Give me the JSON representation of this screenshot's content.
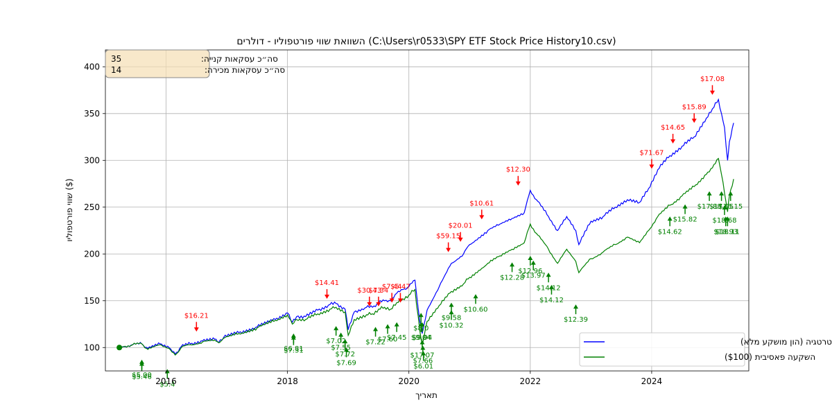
{
  "chart_data": {
    "type": "line",
    "title": "השוואת שווי פורטפוליו - דולרים (C:\\Users\\r0533\\SPY ETF Stock Price History10.csv)",
    "xlabel": "תאריך",
    "ylabel": "שווי פורטפוליו ($)",
    "xlim": [
      2015.0,
      2025.6
    ],
    "ylim": [
      75,
      418
    ],
    "x_ticks": [
      2016,
      2018,
      2020,
      2022,
      2024
    ],
    "y_ticks": [
      100,
      150,
      200,
      250,
      300,
      350,
      400
    ],
    "grid": true,
    "legend_position": "bottom-right",
    "colors": {
      "strategy": "#0000ff",
      "passive": "#008000",
      "sell": "#ff0000",
      "buy": "#008000"
    },
    "series": [
      {
        "name": "ביצועי אסטרטגיה (הון מושקע מלא)",
        "color": "#0000ff",
        "x": [
          2015.23,
          2015.3,
          2015.45,
          2015.6,
          2015.7,
          2015.9,
          2016.05,
          2016.1,
          2016.15,
          2016.25,
          2016.4,
          2016.6,
          2016.8,
          2016.87,
          2016.95,
          2017.2,
          2017.5,
          2017.8,
          2018.0,
          2018.08,
          2018.15,
          2018.3,
          2018.5,
          2018.7,
          2018.8,
          2018.95,
          2019.0,
          2019.1,
          2019.3,
          2019.4,
          2019.5,
          2019.6,
          2019.7,
          2019.8,
          2019.9,
          2020.0,
          2020.1,
          2020.18,
          2020.22,
          2020.3,
          2020.5,
          2020.7,
          2020.9,
          2021.0,
          2021.3,
          2021.5,
          2021.7,
          2021.9,
          2022.0,
          2022.1,
          2022.3,
          2022.45,
          2022.6,
          2022.75,
          2022.8,
          2023.0,
          2023.2,
          2023.4,
          2023.6,
          2023.8,
          2023.95,
          2024.1,
          2024.3,
          2024.5,
          2024.7,
          2024.9,
          2025.0,
          2025.1,
          2025.15,
          2025.2,
          2025.25,
          2025.28,
          2025.35
        ],
        "values": [
          100,
          101,
          103,
          104,
          99,
          104,
          100,
          96,
          93,
          101,
          104,
          107,
          109,
          106,
          111,
          116,
          122,
          130,
          137,
          127,
          133,
          133,
          140,
          146,
          147,
          141,
          119,
          138,
          143,
          143,
          148,
          150,
          150,
          158,
          162,
          165,
          172,
          128,
          115,
          140,
          165,
          190,
          200,
          210,
          225,
          232,
          238,
          244,
          268,
          258,
          240,
          225,
          240,
          225,
          210,
          235,
          240,
          250,
          258,
          255,
          270,
          290,
          305,
          315,
          325,
          345,
          355,
          365,
          350,
          335,
          300,
          320,
          340
        ]
      },
      {
        "name": "השקעה פאסיבית ($100)",
        "color": "#008000",
        "x": [
          2015.23,
          2015.3,
          2015.45,
          2015.6,
          2015.7,
          2015.9,
          2016.05,
          2016.1,
          2016.15,
          2016.25,
          2016.4,
          2016.6,
          2016.8,
          2016.87,
          2016.95,
          2017.2,
          2017.5,
          2017.8,
          2018.0,
          2018.08,
          2018.15,
          2018.3,
          2018.5,
          2018.7,
          2018.8,
          2018.95,
          2019.0,
          2019.1,
          2019.3,
          2019.4,
          2019.5,
          2019.6,
          2019.7,
          2019.8,
          2019.9,
          2020.0,
          2020.1,
          2020.18,
          2020.22,
          2020.3,
          2020.5,
          2020.7,
          2020.9,
          2021.0,
          2021.3,
          2021.5,
          2021.7,
          2021.9,
          2022.0,
          2022.1,
          2022.3,
          2022.45,
          2022.6,
          2022.75,
          2022.8,
          2023.0,
          2023.2,
          2023.4,
          2023.6,
          2023.8,
          2023.95,
          2024.1,
          2024.3,
          2024.5,
          2024.7,
          2024.9,
          2025.0,
          2025.1,
          2025.15,
          2025.2,
          2025.25,
          2025.28,
          2025.35
        ],
        "values": [
          100,
          101,
          103,
          104,
          98,
          103,
          99,
          95,
          92,
          100,
          103,
          106,
          108,
          105,
          110,
          115,
          121,
          129,
          135,
          125,
          130,
          130,
          136,
          141,
          143,
          138,
          113,
          130,
          135,
          136,
          141,
          143,
          141,
          148,
          152,
          156,
          162,
          118,
          103,
          128,
          145,
          160,
          168,
          175,
          190,
          198,
          205,
          212,
          232,
          222,
          205,
          190,
          205,
          192,
          180,
          195,
          202,
          210,
          218,
          212,
          225,
          240,
          252,
          262,
          272,
          285,
          292,
          302,
          285,
          265,
          245,
          262,
          280
        ]
      }
    ],
    "sell_annotations": [
      {
        "x": 2016.5,
        "y": 117,
        "label": "$16.21"
      },
      {
        "x": 2018.65,
        "y": 152,
        "label": "$14.41"
      },
      {
        "x": 2019.35,
        "y": 144,
        "label": "$30.43"
      },
      {
        "x": 2019.5,
        "y": 144,
        "label": "$7.34"
      },
      {
        "x": 2019.72,
        "y": 148,
        "label": "$7.44"
      },
      {
        "x": 2019.86,
        "y": 148,
        "label": "$5.47"
      },
      {
        "x": 2020.65,
        "y": 202,
        "label": "$59.15"
      },
      {
        "x": 2020.85,
        "y": 213,
        "label": "$20.01"
      },
      {
        "x": 2021.2,
        "y": 237,
        "label": "$10.61"
      },
      {
        "x": 2021.8,
        "y": 273,
        "label": "$12.30"
      },
      {
        "x": 2024.0,
        "y": 291,
        "label": "$71.67"
      },
      {
        "x": 2024.35,
        "y": 318,
        "label": "$14.65"
      },
      {
        "x": 2024.7,
        "y": 340,
        "label": "$15.89"
      },
      {
        "x": 2025.0,
        "y": 370,
        "label": "$17.08"
      }
    ],
    "buy_annotations": [
      {
        "x": 2015.6,
        "y": 87,
        "label": "$5.00"
      },
      {
        "x": 2015.6,
        "y": 85,
        "label": "$5.46"
      },
      {
        "x": 2016.02,
        "y": 77,
        "label": "$5.4"
      },
      {
        "x": 2018.1,
        "y": 115,
        "label": "$6.81"
      },
      {
        "x": 2018.1,
        "y": 113,
        "label": "$7.31"
      },
      {
        "x": 2018.8,
        "y": 123,
        "label": "$7.02"
      },
      {
        "x": 2018.88,
        "y": 116,
        "label": "$7.55"
      },
      {
        "x": 2018.95,
        "y": 109,
        "label": "$7.72"
      },
      {
        "x": 2018.97,
        "y": 100,
        "label": "$7.69"
      },
      {
        "x": 2019.45,
        "y": 122,
        "label": "$7.22"
      },
      {
        "x": 2019.65,
        "y": 125,
        "label": "$7.60"
      },
      {
        "x": 2019.8,
        "y": 127,
        "label": "$7.45"
      },
      {
        "x": 2020.2,
        "y": 137,
        "label": "$8.0"
      },
      {
        "x": 2020.2,
        "y": 127,
        "label": "$9.04"
      },
      {
        "x": 2020.22,
        "y": 127,
        "label": "$9.94"
      },
      {
        "x": 2020.22,
        "y": 108,
        "label": "$17.07"
      },
      {
        "x": 2020.23,
        "y": 102,
        "label": "$7.66"
      },
      {
        "x": 2020.24,
        "y": 96,
        "label": "$6.01"
      },
      {
        "x": 2020.7,
        "y": 148,
        "label": "$9.58"
      },
      {
        "x": 2020.7,
        "y": 140,
        "label": "$10.32"
      },
      {
        "x": 2021.1,
        "y": 157,
        "label": "$10.60"
      },
      {
        "x": 2021.7,
        "y": 191,
        "label": "$12.28"
      },
      {
        "x": 2022.0,
        "y": 198,
        "label": "$12.96"
      },
      {
        "x": 2022.05,
        "y": 193,
        "label": "$13.97"
      },
      {
        "x": 2022.3,
        "y": 180,
        "label": "$14.12"
      },
      {
        "x": 2022.35,
        "y": 167,
        "label": "$14.12"
      },
      {
        "x": 2022.75,
        "y": 146,
        "label": "$12.39"
      },
      {
        "x": 2024.3,
        "y": 240,
        "label": "$14.62"
      },
      {
        "x": 2024.55,
        "y": 253,
        "label": "$15.82"
      },
      {
        "x": 2024.95,
        "y": 267,
        "label": "$17.88"
      },
      {
        "x": 2025.15,
        "y": 267,
        "label": "$17.05"
      },
      {
        "x": 2025.3,
        "y": 267,
        "label": "$16.15"
      },
      {
        "x": 2025.2,
        "y": 252,
        "label": "$18.68"
      },
      {
        "x": 2025.22,
        "y": 240,
        "label": "$18.93"
      },
      {
        "x": 2025.25,
        "y": 240,
        "label": "$18.11"
      }
    ],
    "info_box": {
      "buy_total_label": "סה״כ עסקאות קנייה:",
      "buy_total": "35",
      "sell_total_label": "סה״כ עסקאות מכירה:",
      "sell_total": "14"
    }
  }
}
